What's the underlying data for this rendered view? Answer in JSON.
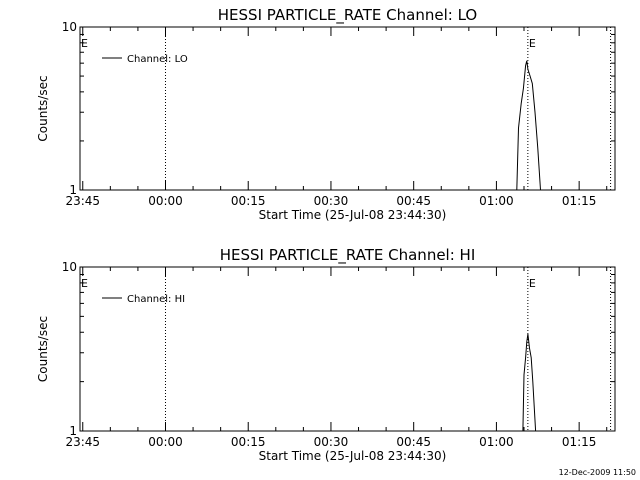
{
  "footer_timestamp": "12-Dec-2009 11:50",
  "chart_data": [
    {
      "type": "line",
      "title": "HESSI PARTICLE_RATE Channel: LO",
      "xlabel": "Start Time (25-Jul-08 23:44:30)",
      "ylabel": "Counts/sec",
      "y_scale": "log",
      "ylim": [
        1,
        10
      ],
      "y_tick_labels": [
        "1",
        "10"
      ],
      "xlim_minutes": [
        0,
        97
      ],
      "x_tick_minutes": [
        0.5,
        15.5,
        30.5,
        45.5,
        60.5,
        75.5,
        90.5
      ],
      "x_tick_labels": [
        "23:45",
        "00:00",
        "00:15",
        "00:30",
        "00:45",
        "01:00",
        "01:15"
      ],
      "legend": {
        "placement": "top-left",
        "entries": [
          "Channel: LO"
        ]
      },
      "event_markers": [
        {
          "minute": 0.5,
          "label": "E",
          "line": false
        },
        {
          "minute": 15.5,
          "label": "",
          "line": true
        },
        {
          "minute": 81.2,
          "label": "E",
          "line": true
        },
        {
          "minute": 96.2,
          "label": "",
          "line": true
        }
      ],
      "series": [
        {
          "name": "Channel: LO",
          "x": [
            79.2,
            79.5,
            80.0,
            80.4,
            80.8,
            81.0,
            81.2,
            81.6,
            82.0,
            82.5,
            83.0,
            83.5
          ],
          "y": [
            1.0,
            2.4,
            3.4,
            4.2,
            5.8,
            6.2,
            5.5,
            5.0,
            4.5,
            3.0,
            1.8,
            1.0
          ]
        }
      ]
    },
    {
      "type": "line",
      "title": "HESSI PARTICLE_RATE Channel: HI",
      "xlabel": "Start Time (25-Jul-08 23:44:30)",
      "ylabel": "Counts/sec",
      "y_scale": "log",
      "ylim": [
        1,
        10
      ],
      "y_tick_labels": [
        "1",
        "10"
      ],
      "xlim_minutes": [
        0,
        97
      ],
      "x_tick_minutes": [
        0.5,
        15.5,
        30.5,
        45.5,
        60.5,
        75.5,
        90.5
      ],
      "x_tick_labels": [
        "23:45",
        "00:00",
        "00:15",
        "00:30",
        "00:45",
        "01:00",
        "01:15"
      ],
      "legend": {
        "placement": "top-left",
        "entries": [
          "Channel: HI"
        ]
      },
      "event_markers": [
        {
          "minute": 0.5,
          "label": "E",
          "line": false
        },
        {
          "minute": 15.5,
          "label": "",
          "line": true
        },
        {
          "minute": 81.2,
          "label": "E",
          "line": true
        },
        {
          "minute": 96.2,
          "label": "",
          "line": true
        }
      ],
      "series": [
        {
          "name": "Channel: HI",
          "x": [
            80.3,
            80.5,
            80.8,
            81.0,
            81.2,
            81.5,
            81.8,
            82.1,
            82.6
          ],
          "y": [
            1.0,
            2.2,
            2.8,
            3.5,
            3.9,
            3.2,
            2.8,
            2.0,
            1.0
          ]
        }
      ]
    }
  ]
}
